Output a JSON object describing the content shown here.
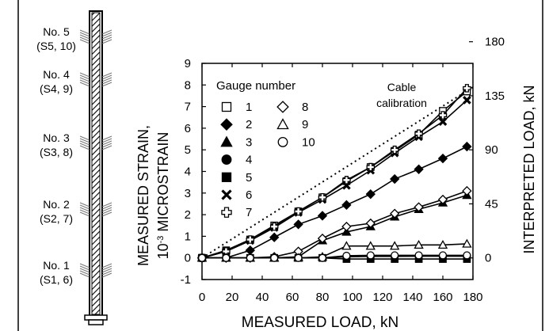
{
  "gauge_diagram": {
    "levels": [
      {
        "name": "No. 5",
        "sub": "(S5, 10)"
      },
      {
        "name": "No. 4",
        "sub": "(S4, 9)"
      },
      {
        "name": "No. 3",
        "sub": "(S3, 8)"
      },
      {
        "name": "No. 2",
        "sub": "(S2, 7)"
      },
      {
        "name": "No. 1",
        "sub": "(S1, 6)"
      }
    ]
  },
  "legend": {
    "title": "Gauge number",
    "items": [
      {
        "id": "1",
        "marker": "square-open"
      },
      {
        "id": "2",
        "marker": "diamond-filled"
      },
      {
        "id": "3",
        "marker": "triangle-filled"
      },
      {
        "id": "4",
        "marker": "circle-filled"
      },
      {
        "id": "5",
        "marker": "square-filled"
      },
      {
        "id": "6",
        "marker": "x-filled"
      },
      {
        "id": "7",
        "marker": "cross-open"
      },
      {
        "id": "8",
        "marker": "diamond-open"
      },
      {
        "id": "9",
        "marker": "triangle-open"
      },
      {
        "id": "10",
        "marker": "circle-open"
      }
    ],
    "cable_label_line1": "Cable",
    "cable_label_line2": "calibration"
  },
  "chart_data": {
    "type": "line",
    "xlabel": "MEASURED LOAD, kN",
    "ylabel_line1": "MEASURED STRAIN,",
    "ylabel_line2_prefix": "10",
    "ylabel_line2_sup": "-3",
    "ylabel_line2_suffix": " MICROSTRAIN",
    "y2label": "INTERPRETED LOAD, kN",
    "xlim": [
      0,
      180
    ],
    "ylim": [
      -1,
      9
    ],
    "xticks": [
      0,
      20,
      40,
      60,
      80,
      100,
      120,
      140,
      160,
      180
    ],
    "yticks": [
      -1,
      0,
      1,
      2,
      3,
      4,
      5,
      6,
      7,
      8,
      9
    ],
    "y2ticks": [
      {
        "label": "0",
        "y": 0
      },
      {
        "label": "45",
        "y": 2.5
      },
      {
        "label": "90",
        "y": 5
      },
      {
        "label": "135",
        "y": 7.5
      },
      {
        "label": "180",
        "y": 10
      }
    ],
    "reference_line": {
      "name": "Cable calibration",
      "style": "dotted",
      "x": [
        0,
        180
      ],
      "y": [
        0,
        7.9
      ]
    },
    "series": [
      {
        "name": "1",
        "marker": "square-open",
        "x": [
          0,
          16,
          32,
          48,
          64,
          80,
          96,
          112,
          128,
          144,
          160,
          176
        ],
        "y": [
          0,
          0.35,
          0.85,
          1.5,
          2.15,
          2.8,
          3.55,
          4.2,
          4.95,
          5.7,
          6.8,
          7.7
        ]
      },
      {
        "name": "2",
        "marker": "diamond-filled",
        "x": [
          0,
          16,
          32,
          48,
          64,
          80,
          96,
          112,
          128,
          144,
          160,
          176
        ],
        "y": [
          0,
          0,
          0.35,
          0.95,
          1.55,
          1.95,
          2.45,
          2.95,
          3.65,
          4.1,
          4.6,
          5.15
        ]
      },
      {
        "name": "3",
        "marker": "triangle-filled",
        "x": [
          0,
          16,
          32,
          48,
          64,
          80,
          96,
          112,
          128,
          144,
          160,
          176
        ],
        "y": [
          0,
          0,
          0,
          0,
          0.05,
          0.8,
          1.2,
          1.45,
          1.9,
          2.25,
          2.55,
          2.9
        ]
      },
      {
        "name": "4",
        "marker": "circle-filled",
        "x": [
          0,
          16,
          32,
          48,
          64,
          80,
          96,
          112,
          128,
          144,
          160,
          176
        ],
        "y": [
          0,
          0,
          0,
          0,
          0,
          0,
          0.05,
          0.07,
          0.07,
          0.08,
          0.08,
          0.08
        ]
      },
      {
        "name": "5",
        "marker": "square-filled",
        "x": [
          0,
          16,
          32,
          48,
          64,
          80,
          96,
          112,
          128,
          144,
          160,
          176
        ],
        "y": [
          0,
          0,
          0,
          0,
          0,
          0,
          -0.05,
          -0.05,
          -0.05,
          -0.05,
          -0.05,
          -0.05
        ]
      },
      {
        "name": "6",
        "marker": "x-filled",
        "x": [
          0,
          16,
          32,
          48,
          64,
          80,
          96,
          112,
          128,
          144,
          160,
          176
        ],
        "y": [
          0,
          0.3,
          0.8,
          1.4,
          2.1,
          2.7,
          3.35,
          4.05,
          4.85,
          5.6,
          6.3,
          7.3
        ]
      },
      {
        "name": "7",
        "marker": "cross-open",
        "x": [
          0,
          16,
          32,
          48,
          64,
          80,
          96,
          112,
          128,
          144,
          160,
          176
        ],
        "y": [
          0,
          0.3,
          0.85,
          1.45,
          2.15,
          2.8,
          3.6,
          4.2,
          5.0,
          5.75,
          6.6,
          7.85
        ]
      },
      {
        "name": "8",
        "marker": "diamond-open",
        "x": [
          0,
          16,
          32,
          48,
          64,
          80,
          96,
          112,
          128,
          144,
          160,
          176
        ],
        "y": [
          0,
          0,
          0,
          0.05,
          0.3,
          0.9,
          1.45,
          1.6,
          2.05,
          2.35,
          2.7,
          3.1
        ]
      },
      {
        "name": "9",
        "marker": "triangle-open",
        "x": [
          0,
          16,
          32,
          48,
          64,
          80,
          96,
          112,
          128,
          144,
          160,
          176
        ],
        "y": [
          0,
          0,
          0,
          0,
          0,
          0.05,
          0.55,
          0.55,
          0.55,
          0.6,
          0.6,
          0.65
        ]
      },
      {
        "name": "10",
        "marker": "circle-open",
        "x": [
          0,
          16,
          32,
          48,
          64,
          80,
          96,
          112,
          128,
          144,
          160,
          176
        ],
        "y": [
          0,
          0,
          0,
          0,
          0,
          0,
          0.1,
          0.12,
          0.12,
          0.12,
          0.12,
          0.12
        ]
      }
    ]
  }
}
